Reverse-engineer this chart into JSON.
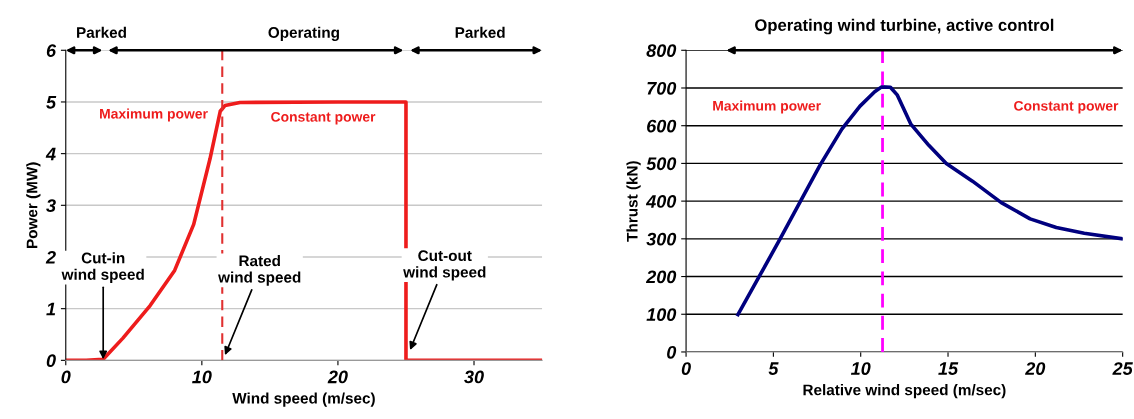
{
  "chart_data": [
    {
      "type": "line",
      "xlabel": "Wind speed (m/sec)",
      "ylabel": "Power (MW)",
      "xlim": [
        0,
        35
      ],
      "ylim": [
        0,
        6
      ],
      "xticks": [
        0,
        10,
        20,
        30
      ],
      "yticks": [
        0,
        1,
        2,
        3,
        4,
        5,
        6
      ],
      "grid": "y",
      "legend": false,
      "x": [
        0,
        1.5,
        2.75,
        4.2,
        6.2,
        8.0,
        9.4,
        10.6,
        11.35,
        11.7,
        12.8,
        20,
        25,
        25,
        35
      ],
      "series": [
        {
          "color": "#ee1c1c",
          "values": [
            0,
            0,
            0.02,
            0.43,
            1.06,
            1.74,
            2.63,
            3.9,
            4.82,
            4.93,
            4.99,
            5.0,
            5.0,
            0,
            0
          ]
        }
      ],
      "ref_lines": [
        {
          "axis": "x",
          "value": 11.5,
          "color": "#e03030",
          "line_style": "dashed"
        }
      ],
      "annotations": [
        "Parked",
        "Operating",
        "Parked",
        "Maximum power",
        "Constant power",
        {
          "text": "Cut-in\nwind speed",
          "x": 2.75,
          "y": 0.02
        },
        {
          "text": "Rated\nwind speed",
          "x": 11.7,
          "y": 0.1
        },
        {
          "text": "Cut-out\nwind speed",
          "x": 25.3,
          "y": 0.2
        }
      ]
    },
    {
      "type": "line",
      "title": "Operating wind turbine, active control",
      "xlabel": "Relative wind speed (m/sec)",
      "ylabel": "Thrust (kN)",
      "xlim": [
        0,
        25
      ],
      "ylim": [
        0,
        800
      ],
      "xticks": [
        0,
        5,
        10,
        15,
        20,
        25
      ],
      "yticks": [
        0,
        100,
        200,
        300,
        400,
        500,
        600,
        700,
        800
      ],
      "grid": "y",
      "legend": false,
      "x": [
        2.97,
        4.15,
        5.4,
        6.64,
        7.68,
        8.92,
        9.96,
        10.8,
        11.2,
        11.7,
        12.1,
        12.86,
        13.9,
        14.9,
        16.4,
        18.05,
        19.7,
        21.2,
        22.8,
        25
      ],
      "series": [
        {
          "color": "#00007f",
          "values": [
            99,
            197,
            301,
            407,
            496,
            591,
            652,
            690,
            703,
            702,
            681,
            605,
            548,
            500,
            453,
            396,
            353,
            330,
            315,
            300
          ]
        }
      ],
      "ref_lines": [
        {
          "axis": "x",
          "value": 11.25,
          "color": "#ff00ff",
          "line_style": "dashed"
        }
      ],
      "annotations": [
        "Maximum power",
        "Constant power"
      ]
    }
  ]
}
